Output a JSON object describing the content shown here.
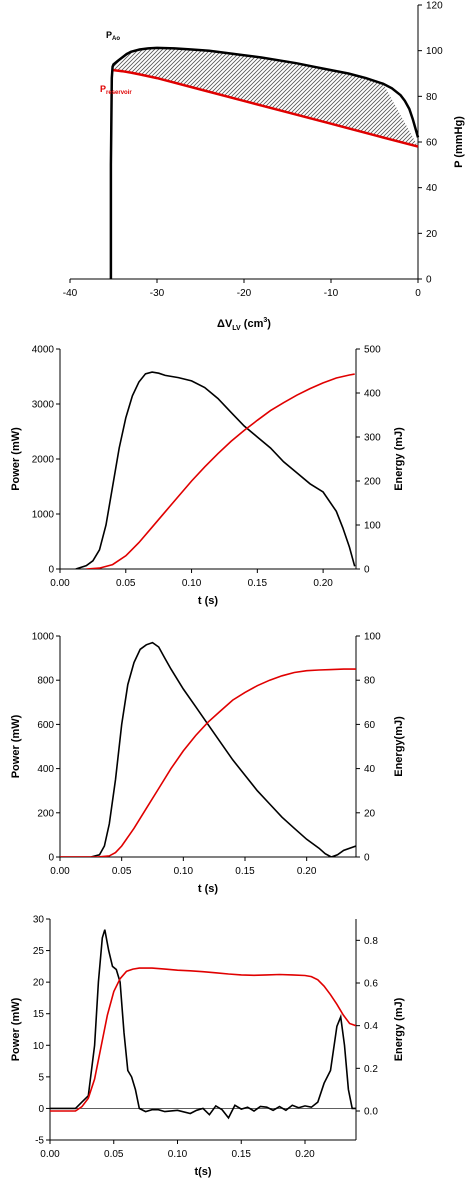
{
  "chart_data": [
    {
      "type": "line",
      "xlabel": "ΔV",
      "xlabel_sub": "LV",
      "xlabel_unit": " (cm",
      "xlabel_sup": "3",
      "xlabel_close": ")",
      "ylabel": "P (mmHg)",
      "xlim": [
        -40,
        0
      ],
      "ylim": [
        0,
        120
      ],
      "xticks": [
        -40,
        -30,
        -20,
        -10,
        0
      ],
      "yticks": [
        0,
        20,
        40,
        60,
        80,
        100,
        120
      ],
      "xtick_labels": [
        "-40",
        "-30",
        "-20",
        "-10",
        "0"
      ],
      "ytick_labels": [
        "0",
        "20",
        "40",
        "60",
        "80",
        "100",
        "120"
      ],
      "y_axis_side": "right",
      "fill_between": true,
      "series": [
        {
          "name": "P",
          "name_sub": "Ao",
          "color": "#000000",
          "x": [
            -35.3,
            -35.3,
            -35.2,
            -35.1,
            -35.0,
            -34.5,
            -34.0,
            -33.5,
            -33.0,
            -32.0,
            -31.0,
            -30.0,
            -28.0,
            -26.0,
            -24.0,
            -22.0,
            -20.0,
            -18.0,
            -16.0,
            -14.0,
            -12.0,
            -10.0,
            -8.0,
            -6.0,
            -4.0,
            -3.0,
            -2.0,
            -1.5,
            -1.0,
            -0.6,
            -0.3,
            0.0
          ],
          "y": [
            0,
            50,
            88,
            93,
            94,
            95.5,
            97,
            98.5,
            99.5,
            100.5,
            101,
            101.2,
            101,
            100.5,
            100,
            99,
            98,
            97,
            95.8,
            94.5,
            93,
            91.5,
            90,
            88,
            85.5,
            83.5,
            80.5,
            78,
            74.5,
            70,
            66,
            62
          ]
        },
        {
          "name": "P",
          "name_sub": "reservoir",
          "color": "#e00000",
          "x": [
            -35.0,
            -34.0,
            -33.0,
            -32.0,
            -30.0,
            -25.0,
            -20.0,
            -15.0,
            -10.0,
            -5.0,
            0.0
          ],
          "y": [
            91.5,
            91.0,
            90.4,
            89.6,
            88.0,
            83.0,
            78.0,
            73.0,
            68.0,
            63.0,
            58.0
          ]
        }
      ]
    },
    {
      "type": "line",
      "xlabel": "t (s)",
      "ylabel": "Power (mW)",
      "y2label": "Energy (mJ)",
      "xlim": [
        0,
        0.225
      ],
      "ylim": [
        0,
        4000
      ],
      "y2lim": [
        0,
        500
      ],
      "xticks": [
        0,
        0.05,
        0.1,
        0.15,
        0.2
      ],
      "yticks": [
        0,
        1000,
        2000,
        3000,
        4000
      ],
      "y2ticks": [
        0,
        100,
        200,
        300,
        400,
        500
      ],
      "xtick_labels": [
        "0.00",
        "0.05",
        "0.10",
        "0.15",
        "0.20"
      ],
      "ytick_labels": [
        "0",
        "1000",
        "2000",
        "3000",
        "4000"
      ],
      "y2tick_labels": [
        "0",
        "100",
        "200",
        "300",
        "400",
        "500"
      ],
      "series": [
        {
          "name": "",
          "axis": "left",
          "color": "#000000",
          "x": [
            0.012,
            0.02,
            0.025,
            0.03,
            0.035,
            0.04,
            0.045,
            0.05,
            0.055,
            0.06,
            0.065,
            0.07,
            0.075,
            0.08,
            0.09,
            0.1,
            0.11,
            0.12,
            0.13,
            0.14,
            0.15,
            0.16,
            0.17,
            0.18,
            0.19,
            0.2,
            0.21,
            0.215,
            0.22,
            0.224
          ],
          "y": [
            0,
            60,
            150,
            350,
            800,
            1500,
            2200,
            2750,
            3150,
            3400,
            3550,
            3580,
            3560,
            3520,
            3480,
            3420,
            3300,
            3100,
            2850,
            2600,
            2400,
            2200,
            1950,
            1750,
            1550,
            1400,
            1050,
            750,
            400,
            50
          ]
        },
        {
          "name": "",
          "axis": "right",
          "color": "#e00000",
          "x": [
            0.02,
            0.03,
            0.04,
            0.05,
            0.06,
            0.07,
            0.08,
            0.09,
            0.1,
            0.11,
            0.12,
            0.13,
            0.14,
            0.15,
            0.16,
            0.17,
            0.18,
            0.19,
            0.2,
            0.21,
            0.22,
            0.224
          ],
          "y": [
            0,
            2,
            10,
            30,
            60,
            95,
            130,
            165,
            200,
            232,
            262,
            290,
            315,
            338,
            360,
            378,
            395,
            410,
            423,
            434,
            441,
            443
          ]
        }
      ]
    },
    {
      "type": "line",
      "xlabel": "t (s)",
      "ylabel": "Power (mW)",
      "y2label": "Energy(mJ)",
      "xlim": [
        0,
        0.24
      ],
      "ylim": [
        0,
        1000
      ],
      "y2lim": [
        0,
        100
      ],
      "xticks": [
        0,
        0.05,
        0.1,
        0.15,
        0.2
      ],
      "yticks": [
        0,
        200,
        400,
        600,
        800,
        1000
      ],
      "y2ticks": [
        0,
        20,
        40,
        60,
        80,
        100
      ],
      "xtick_labels": [
        "0.00",
        "0.05",
        "0.10",
        "0.15",
        "0.20"
      ],
      "ytick_labels": [
        "0",
        "200",
        "400",
        "600",
        "800",
        "1000"
      ],
      "y2tick_labels": [
        "0",
        "20",
        "40",
        "60",
        "80",
        "100"
      ],
      "series": [
        {
          "name": "",
          "axis": "left",
          "color": "#000000",
          "x": [
            0.0,
            0.025,
            0.032,
            0.036,
            0.04,
            0.045,
            0.05,
            0.055,
            0.06,
            0.065,
            0.07,
            0.075,
            0.08,
            0.085,
            0.09,
            0.1,
            0.11,
            0.12,
            0.13,
            0.14,
            0.15,
            0.16,
            0.17,
            0.18,
            0.19,
            0.2,
            0.21,
            0.215,
            0.22,
            0.225,
            0.23,
            0.24
          ],
          "y": [
            0,
            0,
            10,
            50,
            150,
            350,
            600,
            780,
            880,
            940,
            960,
            970,
            950,
            900,
            850,
            760,
            680,
            600,
            520,
            440,
            370,
            300,
            240,
            180,
            130,
            80,
            40,
            15,
            0,
            10,
            30,
            50
          ]
        },
        {
          "name": "",
          "axis": "right",
          "color": "#e00000",
          "x": [
            0.0,
            0.03,
            0.04,
            0.045,
            0.05,
            0.06,
            0.07,
            0.08,
            0.09,
            0.1,
            0.11,
            0.12,
            0.13,
            0.14,
            0.15,
            0.16,
            0.17,
            0.18,
            0.19,
            0.2,
            0.21,
            0.22,
            0.23,
            0.24
          ],
          "y": [
            0,
            0,
            0.5,
            2,
            5,
            13,
            22,
            31,
            40,
            48,
            55,
            61,
            66,
            71,
            74.5,
            77.5,
            80,
            82,
            83.5,
            84.3,
            84.6,
            84.8,
            85,
            85
          ]
        }
      ]
    },
    {
      "type": "line",
      "xlabel": "t(s)",
      "ylabel": "Power (mW)",
      "y2label": "Energy (mJ)",
      "xlim": [
        0,
        0.24
      ],
      "ylim": [
        -5,
        30
      ],
      "y2lim": [
        -0.136,
        0.9
      ],
      "xticks": [
        0,
        0.05,
        0.1,
        0.15,
        0.2
      ],
      "yticks": [
        -5,
        0,
        5,
        10,
        15,
        20,
        25,
        30
      ],
      "y2ticks": [
        0,
        0.2,
        0.4,
        0.6,
        0.8
      ],
      "xtick_labels": [
        "0.00",
        "0.05",
        "0.10",
        "0.15",
        "0.20"
      ],
      "ytick_labels": [
        "-5",
        "0",
        "5",
        "10",
        "15",
        "20",
        "25",
        "30"
      ],
      "y2tick_labels": [
        "0.0",
        "0.2",
        "0.4",
        "0.6",
        "0.8"
      ],
      "series": [
        {
          "name": "",
          "axis": "left",
          "color": "#000000",
          "x": [
            0.0,
            0.01,
            0.02,
            0.025,
            0.03,
            0.035,
            0.038,
            0.041,
            0.043,
            0.046,
            0.049,
            0.052,
            0.055,
            0.058,
            0.061,
            0.064,
            0.067,
            0.07,
            0.075,
            0.08,
            0.085,
            0.09,
            0.1,
            0.11,
            0.115,
            0.12,
            0.125,
            0.13,
            0.135,
            0.14,
            0.145,
            0.15,
            0.155,
            0.16,
            0.165,
            0.17,
            0.175,
            0.18,
            0.185,
            0.19,
            0.195,
            0.2,
            0.205,
            0.21,
            0.215,
            0.22,
            0.225,
            0.228,
            0.231,
            0.234,
            0.237,
            0.24
          ],
          "y": [
            0,
            0,
            0,
            1,
            2,
            10,
            20,
            27,
            28.3,
            25,
            22.5,
            22,
            20,
            12,
            6,
            5,
            3,
            0,
            -0.5,
            -0.2,
            -0.2,
            -0.5,
            -0.3,
            -0.8,
            -0.3,
            0.0,
            -1.0,
            0.4,
            -0.2,
            -1.5,
            0.5,
            -0.1,
            0.2,
            -0.4,
            0.3,
            0.2,
            -0.3,
            0.3,
            -0.3,
            0.5,
            0.1,
            0.4,
            0.2,
            1.0,
            4.0,
            6.0,
            13.0,
            14.5,
            10.0,
            3.0,
            0.0,
            0.0
          ]
        },
        {
          "name": "",
          "axis": "right",
          "color": "#e00000",
          "x": [
            0.0,
            0.02,
            0.025,
            0.03,
            0.035,
            0.04,
            0.045,
            0.05,
            0.055,
            0.06,
            0.065,
            0.07,
            0.08,
            0.09,
            0.1,
            0.11,
            0.12,
            0.13,
            0.14,
            0.15,
            0.16,
            0.17,
            0.18,
            0.19,
            0.2,
            0.205,
            0.21,
            0.215,
            0.22,
            0.225,
            0.23,
            0.235,
            0.24
          ],
          "y": [
            0,
            0,
            0.02,
            0.06,
            0.15,
            0.3,
            0.45,
            0.56,
            0.62,
            0.655,
            0.665,
            0.67,
            0.67,
            0.665,
            0.66,
            0.657,
            0.653,
            0.648,
            0.642,
            0.638,
            0.636,
            0.638,
            0.64,
            0.638,
            0.635,
            0.63,
            0.615,
            0.585,
            0.545,
            0.5,
            0.45,
            0.41,
            0.4
          ]
        }
      ]
    }
  ]
}
